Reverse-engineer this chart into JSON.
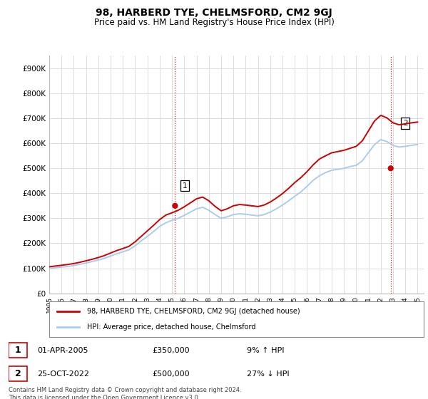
{
  "title": "98, HARBERD TYE, CHELMSFORD, CM2 9GJ",
  "subtitle": "Price paid vs. HM Land Registry's House Price Index (HPI)",
  "ylabel_ticks": [
    "£0",
    "£100K",
    "£200K",
    "£300K",
    "£400K",
    "£500K",
    "£600K",
    "£700K",
    "£800K",
    "£900K"
  ],
  "ylim": [
    0,
    950000
  ],
  "background_color": "#ffffff",
  "grid_color": "#dddddd",
  "red_line_color": "#cc0000",
  "blue_line_color": "#aaccee",
  "marker1_date": 2005.25,
  "marker1_price": 350000,
  "marker2_date": 2022.81,
  "marker2_price": 500000,
  "legend_label_red": "98, HARBERD TYE, CHELMSFORD, CM2 9GJ (detached house)",
  "legend_label_blue": "HPI: Average price, detached house, Chelmsford",
  "annotation1_text": "01-APR-2005",
  "annotation1_price_text": "£350,000",
  "annotation1_hpi_text": "9% ↑ HPI",
  "annotation2_text": "25-OCT-2022",
  "annotation2_price_text": "£500,000",
  "annotation2_hpi_text": "27% ↓ HPI",
  "footer": "Contains HM Land Registry data © Crown copyright and database right 2024.\nThis data is licensed under the Open Government Licence v3.0.",
  "xmin": 1995.0,
  "xmax": 2025.5,
  "years": [
    1995.0,
    1995.5,
    1996.0,
    1996.5,
    1997.0,
    1997.5,
    1998.0,
    1998.5,
    1999.0,
    1999.5,
    2000.0,
    2000.5,
    2001.0,
    2001.5,
    2002.0,
    2002.5,
    2003.0,
    2003.5,
    2004.0,
    2004.5,
    2005.0,
    2005.5,
    2006.0,
    2006.5,
    2007.0,
    2007.5,
    2008.0,
    2008.5,
    2009.0,
    2009.5,
    2010.0,
    2010.5,
    2011.0,
    2011.5,
    2012.0,
    2012.5,
    2013.0,
    2013.5,
    2014.0,
    2014.5,
    2015.0,
    2015.5,
    2016.0,
    2016.5,
    2017.0,
    2017.5,
    2018.0,
    2018.5,
    2019.0,
    2019.5,
    2020.0,
    2020.5,
    2021.0,
    2021.5,
    2022.0,
    2022.5,
    2023.0,
    2023.5,
    2024.0,
    2024.5,
    2025.0
  ],
  "blue_values": [
    100000,
    102000,
    105000,
    107000,
    111000,
    116000,
    121000,
    127000,
    133000,
    140000,
    149000,
    158000,
    166000,
    174000,
    190000,
    210000,
    228000,
    247000,
    268000,
    282000,
    292000,
    300000,
    312000,
    325000,
    338000,
    344000,
    332000,
    315000,
    300000,
    306000,
    315000,
    318000,
    316000,
    313000,
    310000,
    315000,
    325000,
    338000,
    353000,
    370000,
    388000,
    406000,
    428000,
    452000,
    470000,
    483000,
    492000,
    496000,
    500000,
    507000,
    512000,
    530000,
    563000,
    595000,
    615000,
    607000,
    592000,
    585000,
    588000,
    592000,
    595000
  ],
  "red_values": [
    106000,
    109000,
    112000,
    115000,
    119000,
    124000,
    130000,
    136000,
    143000,
    151000,
    161000,
    171000,
    179000,
    188000,
    206000,
    228000,
    250000,
    272000,
    295000,
    313000,
    322000,
    332000,
    346000,
    362000,
    378000,
    385000,
    370000,
    348000,
    330000,
    338000,
    350000,
    355000,
    353000,
    350000,
    347000,
    353000,
    365000,
    381000,
    399000,
    420000,
    443000,
    463000,
    487000,
    514000,
    537000,
    550000,
    562000,
    567000,
    572000,
    580000,
    588000,
    610000,
    650000,
    690000,
    712000,
    702000,
    682000,
    674000,
    678000,
    682000,
    685000
  ]
}
